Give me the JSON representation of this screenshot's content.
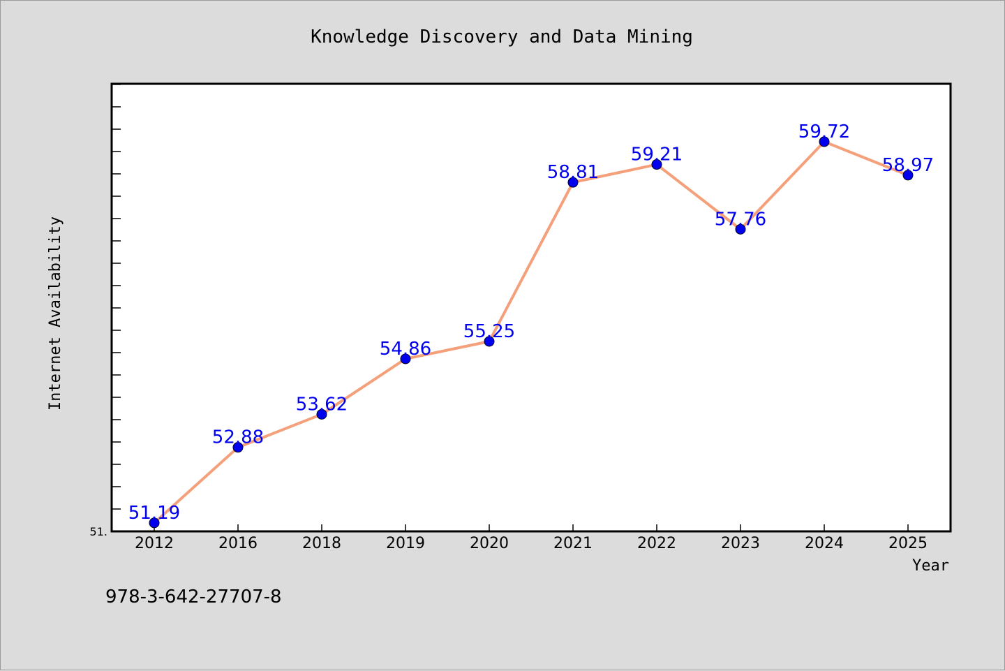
{
  "chart_data": {
    "type": "line",
    "title": "Knowledge Discovery and Data Mining",
    "xlabel": "Year",
    "ylabel": "Internet Availability",
    "categories": [
      "2012",
      "2016",
      "2018",
      "2019",
      "2020",
      "2021",
      "2022",
      "2023",
      "2024",
      "2025"
    ],
    "series": [
      {
        "values": [
          51.19,
          52.88,
          53.62,
          54.86,
          55.25,
          58.81,
          59.21,
          57.76,
          59.72,
          58.97
        ],
        "labels": [
          "51.19",
          "52.88",
          "53.62",
          "54.86",
          "55.25",
          "58.81",
          "59.21",
          "57.76",
          "59.72",
          "58.97"
        ],
        "line_color": "#f4a07a",
        "marker_color": "#0000ee"
      }
    ],
    "ylim": [
      51.0,
      61.0
    ],
    "y_tick_label": "51.",
    "grid": false
  },
  "footer_text": "978-3-642-27707-8",
  "colors": {
    "background": "#dcdcdc",
    "plot_background": "#ffffff",
    "label_color": "#0000ee",
    "axis_color": "#000000"
  }
}
